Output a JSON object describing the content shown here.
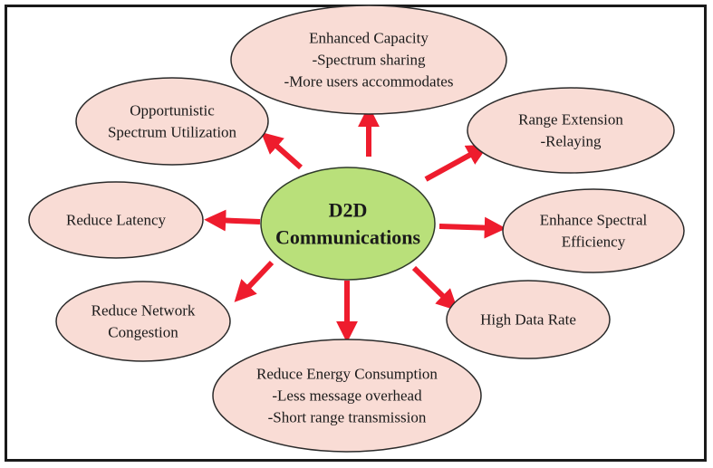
{
  "diagram": {
    "center": {
      "lines": [
        "D2D",
        "Communications"
      ],
      "fill": "#b9e07a",
      "stroke": "#2f3a2a"
    },
    "node_fill": "#f9dcd5",
    "node_stroke": "#2b2b2b",
    "arrow_color": "#ee1c2d",
    "nodes": [
      {
        "id": "capacity",
        "lines": [
          "Enhanced Capacity",
          "-Spectrum sharing",
          "-More users accommodates"
        ]
      },
      {
        "id": "range",
        "lines": [
          "Range Extension",
          "-Relaying"
        ]
      },
      {
        "id": "spectral",
        "lines": [
          "Enhance Spectral",
          "Efficiency"
        ]
      },
      {
        "id": "datarate",
        "lines": [
          "High Data Rate"
        ]
      },
      {
        "id": "energy",
        "lines": [
          "Reduce Energy Consumption",
          "-Less message overhead",
          "-Short range transmission"
        ]
      },
      {
        "id": "congestion",
        "lines": [
          "Reduce Network",
          "Congestion"
        ]
      },
      {
        "id": "latency",
        "lines": [
          "Reduce Latency"
        ]
      },
      {
        "id": "opportunistic",
        "lines": [
          "Opportunistic",
          "Spectrum Utilization"
        ]
      }
    ]
  }
}
